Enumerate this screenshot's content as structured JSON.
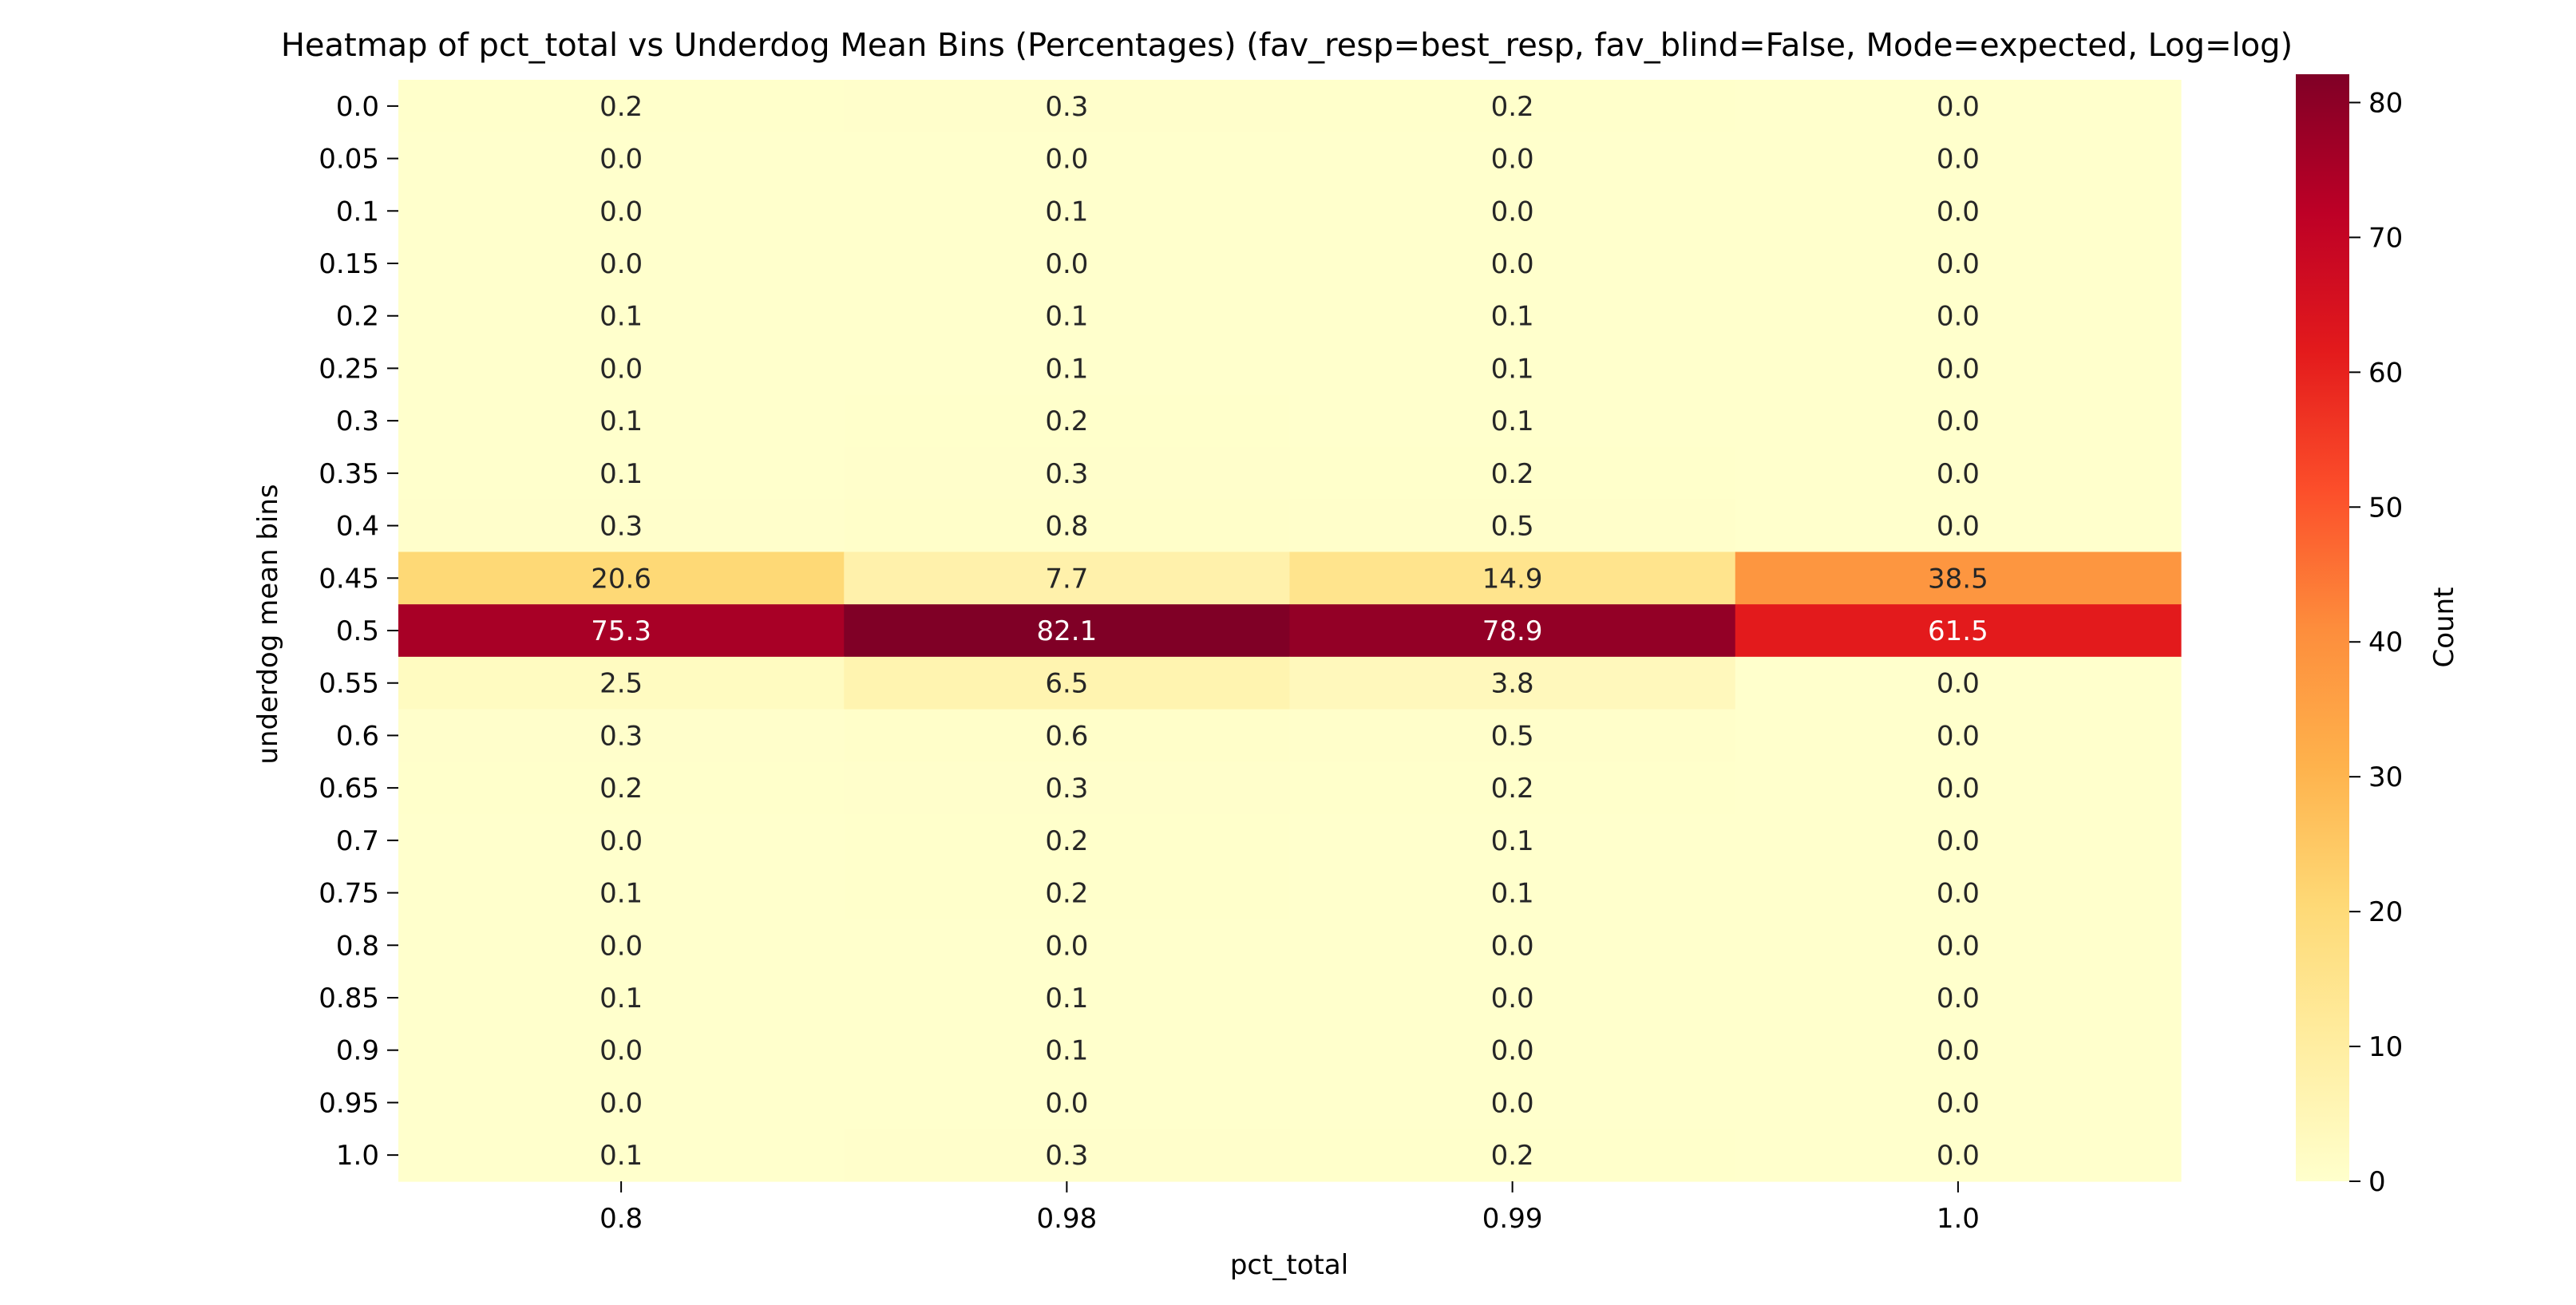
{
  "chart_data": {
    "type": "heatmap",
    "title": "Heatmap of pct_total vs Underdog Mean Bins (Percentages)  (fav_resp=best_resp, fav_blind=False, Mode=expected, Log=log)",
    "xlabel": "pct_total",
    "ylabel": "underdog mean bins",
    "x_categories": [
      "0.8",
      "0.98",
      "0.99",
      "1.0"
    ],
    "y_categories": [
      "0.0",
      "0.05",
      "0.1",
      "0.15",
      "0.2",
      "0.25",
      "0.3",
      "0.35",
      "0.4",
      "0.45",
      "0.5",
      "0.55",
      "0.6",
      "0.65",
      "0.7",
      "0.75",
      "0.8",
      "0.85",
      "0.9",
      "0.95",
      "1.0"
    ],
    "values": [
      [
        0.2,
        0.3,
        0.2,
        0.0
      ],
      [
        0.0,
        0.0,
        0.0,
        0.0
      ],
      [
        0.0,
        0.1,
        0.0,
        0.0
      ],
      [
        0.0,
        0.0,
        0.0,
        0.0
      ],
      [
        0.1,
        0.1,
        0.1,
        0.0
      ],
      [
        0.0,
        0.1,
        0.1,
        0.0
      ],
      [
        0.1,
        0.2,
        0.1,
        0.0
      ],
      [
        0.1,
        0.3,
        0.2,
        0.0
      ],
      [
        0.3,
        0.8,
        0.5,
        0.0
      ],
      [
        20.6,
        7.7,
        14.9,
        38.5
      ],
      [
        75.3,
        82.1,
        78.9,
        61.5
      ],
      [
        2.5,
        6.5,
        3.8,
        0.0
      ],
      [
        0.3,
        0.6,
        0.5,
        0.0
      ],
      [
        0.2,
        0.3,
        0.2,
        0.0
      ],
      [
        0.0,
        0.2,
        0.1,
        0.0
      ],
      [
        0.1,
        0.2,
        0.1,
        0.0
      ],
      [
        0.0,
        0.0,
        0.0,
        0.0
      ],
      [
        0.1,
        0.1,
        0.0,
        0.0
      ],
      [
        0.0,
        0.1,
        0.0,
        0.0
      ],
      [
        0.0,
        0.0,
        0.0,
        0.0
      ],
      [
        0.1,
        0.3,
        0.2,
        0.0
      ]
    ],
    "value_format": "0.1f",
    "colormap": "YlOrRd",
    "colorbar": {
      "label": "Count",
      "range": [
        0,
        82.1
      ],
      "ticks": [
        0,
        10,
        20,
        30,
        40,
        50,
        60,
        70,
        80
      ]
    },
    "grid": false,
    "legend": "colorbar-right"
  }
}
